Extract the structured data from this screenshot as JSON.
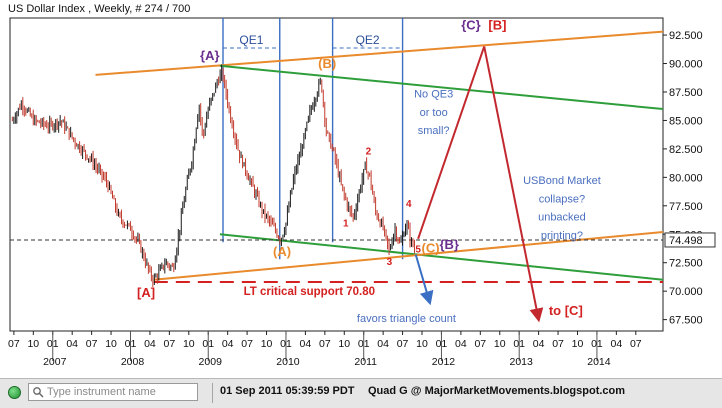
{
  "header": {
    "title": "US Dollar Index , Weekly, # 274 / 700"
  },
  "chart_data": {
    "type": "line",
    "title": "US Dollar Index , Weekly, # 274 / 700",
    "y_axis_side": "right",
    "ylim": [
      66.5,
      94.0
    ],
    "y_ticks": [
      "92.500",
      "90.000",
      "87.500",
      "85.000",
      "82.500",
      "80.000",
      "77.500",
      "75.000",
      "72.500",
      "70.000",
      "67.500"
    ],
    "y_tick_values": [
      92.5,
      90.0,
      87.5,
      85.0,
      82.5,
      80.0,
      77.5,
      75.0,
      72.5,
      70.0,
      67.5
    ],
    "current_price": "74.498",
    "current_price_value": 74.498,
    "x_range": [
      2006.45,
      2014.85
    ],
    "x_month_ticks": [
      {
        "t": 2006.5,
        "label": "07"
      },
      {
        "t": 2006.75,
        "label": "10"
      },
      {
        "t": 2007.0,
        "label": "01"
      },
      {
        "t": 2007.25,
        "label": "04"
      },
      {
        "t": 2007.5,
        "label": "07"
      },
      {
        "t": 2007.75,
        "label": "10"
      },
      {
        "t": 2008.0,
        "label": "01"
      },
      {
        "t": 2008.25,
        "label": "04"
      },
      {
        "t": 2008.5,
        "label": "07"
      },
      {
        "t": 2008.75,
        "label": "10"
      },
      {
        "t": 2009.0,
        "label": "01"
      },
      {
        "t": 2009.25,
        "label": "04"
      },
      {
        "t": 2009.5,
        "label": "07"
      },
      {
        "t": 2009.75,
        "label": "10"
      },
      {
        "t": 2010.0,
        "label": "01"
      },
      {
        "t": 2010.25,
        "label": "04"
      },
      {
        "t": 2010.5,
        "label": "07"
      },
      {
        "t": 2010.75,
        "label": "10"
      },
      {
        "t": 2011.0,
        "label": "01"
      },
      {
        "t": 2011.25,
        "label": "04"
      },
      {
        "t": 2011.5,
        "label": "07"
      },
      {
        "t": 2011.75,
        "label": "10"
      },
      {
        "t": 2012.0,
        "label": "01"
      },
      {
        "t": 2012.25,
        "label": "04"
      },
      {
        "t": 2012.5,
        "label": "07"
      },
      {
        "t": 2012.75,
        "label": "10"
      },
      {
        "t": 2013.0,
        "label": "01"
      },
      {
        "t": 2013.25,
        "label": "04"
      },
      {
        "t": 2013.5,
        "label": "07"
      },
      {
        "t": 2013.75,
        "label": "10"
      },
      {
        "t": 2014.0,
        "label": "01"
      },
      {
        "t": 2014.25,
        "label": "04"
      },
      {
        "t": 2014.5,
        "label": "07"
      }
    ],
    "x_year_ticks": [
      {
        "t": 2007.0,
        "label": "2007"
      },
      {
        "t": 2008.0,
        "label": "2008"
      },
      {
        "t": 2009.0,
        "label": "2009"
      },
      {
        "t": 2010.0,
        "label": "2010"
      },
      {
        "t": 2011.0,
        "label": "2011"
      },
      {
        "t": 2012.0,
        "label": "2012"
      },
      {
        "t": 2013.0,
        "label": "2013"
      },
      {
        "t": 2014.0,
        "label": "2014"
      }
    ],
    "price_path": [
      [
        2006.48,
        85.0
      ],
      [
        2006.6,
        86.5
      ],
      [
        2006.75,
        85.0
      ],
      [
        2006.95,
        84.5
      ],
      [
        2007.1,
        85.0
      ],
      [
        2007.3,
        83.0
      ],
      [
        2007.5,
        81.5
      ],
      [
        2007.7,
        79.5
      ],
      [
        2007.85,
        76.5
      ],
      [
        2008.0,
        75.5
      ],
      [
        2008.12,
        74.0
      ],
      [
        2008.25,
        71.5
      ],
      [
        2008.3,
        71.0
      ],
      [
        2008.45,
        72.5
      ],
      [
        2008.55,
        72.0
      ],
      [
        2008.62,
        75.0
      ],
      [
        2008.7,
        78.5
      ],
      [
        2008.8,
        82.0
      ],
      [
        2008.88,
        86.5
      ],
      [
        2008.93,
        83.5
      ],
      [
        2009.0,
        86.0
      ],
      [
        2009.12,
        88.5
      ],
      [
        2009.18,
        89.2
      ],
      [
        2009.28,
        85.5
      ],
      [
        2009.4,
        82.0
      ],
      [
        2009.55,
        79.5
      ],
      [
        2009.7,
        77.0
      ],
      [
        2009.85,
        75.5
      ],
      [
        2009.93,
        74.5
      ],
      [
        2010.0,
        76.0
      ],
      [
        2010.1,
        80.0
      ],
      [
        2010.2,
        82.5
      ],
      [
        2010.3,
        85.5
      ],
      [
        2010.42,
        88.0
      ],
      [
        2010.45,
        88.5
      ],
      [
        2010.52,
        84.0
      ],
      [
        2010.62,
        82.0
      ],
      [
        2010.72,
        79.0
      ],
      [
        2010.82,
        77.0
      ],
      [
        2010.87,
        76.5
      ],
      [
        2010.95,
        79.0
      ],
      [
        2011.02,
        81.0
      ],
      [
        2011.08,
        80.0
      ],
      [
        2011.15,
        77.0
      ],
      [
        2011.25,
        75.5
      ],
      [
        2011.33,
        73.5
      ],
      [
        2011.4,
        75.5
      ],
      [
        2011.47,
        74.0
      ],
      [
        2011.55,
        76.0
      ],
      [
        2011.6,
        74.5
      ],
      [
        2011.67,
        73.5
      ]
    ],
    "trendlines": [
      {
        "name": "orange-upper",
        "color": "#e98a2c",
        "from": [
          2007.55,
          89.0
        ],
        "to": [
          2014.85,
          92.8
        ]
      },
      {
        "name": "green-upper",
        "color": "#2e9e3a",
        "from": [
          2009.15,
          89.8
        ],
        "to": [
          2014.85,
          86.0
        ]
      },
      {
        "name": "green-lower",
        "color": "#2e9e3a",
        "from": [
          2009.15,
          75.0
        ],
        "to": [
          2014.85,
          71.0
        ]
      },
      {
        "name": "orange-lower",
        "color": "#e98a2c",
        "from": [
          2008.3,
          71.0
        ],
        "to": [
          2014.85,
          75.2
        ]
      }
    ],
    "dashed_price_line": {
      "y": 74.498,
      "color": "#333333"
    },
    "support_line": {
      "y": 70.8,
      "from_t": 2008.3,
      "to_t": 2014.85,
      "color": "#d42020",
      "label": "LT critical support 70.80"
    },
    "qe_bands": [
      {
        "label": "QE1",
        "from_t": 2009.19,
        "to_t": 2009.92
      },
      {
        "label": "QE2",
        "from_t": 2010.6,
        "to_t": 2011.5
      }
    ],
    "projections": [
      {
        "name": "rise-to-C",
        "color": "#c2282e",
        "points": [
          [
            2011.7,
            74.6
          ],
          [
            2012.55,
            91.5
          ]
        ]
      },
      {
        "name": "fall-to-C",
        "color": "#c2282e",
        "points": [
          [
            2012.55,
            91.5
          ],
          [
            2013.25,
            67.5
          ]
        ],
        "arrow": true
      },
      {
        "name": "triangle-arrow",
        "color": "#3a6fc4",
        "points": [
          [
            2011.67,
            73.2
          ],
          [
            2011.85,
            69.0
          ]
        ],
        "arrow": true
      }
    ],
    "wave_labels": [
      {
        "text": "{A}",
        "t": 2009.02,
        "y": 90.3,
        "color": "#6a2f8e"
      },
      {
        "text": "(B)",
        "t": 2010.53,
        "y": 89.6,
        "color": "#e98a2c"
      },
      {
        "text": "{C}",
        "t": 2012.38,
        "y": 93.0,
        "color": "#6a2f8e"
      },
      {
        "text": "[B]",
        "t": 2012.72,
        "y": 93.0,
        "color": "#d42020"
      },
      {
        "text": "(A)",
        "t": 2009.95,
        "y": 73.1,
        "color": "#e98a2c"
      },
      {
        "text": "[A]",
        "t": 2008.2,
        "y": 69.5,
        "color": "#d42020"
      },
      {
        "text": "1",
        "t": 2010.77,
        "y": 75.7,
        "color": "#d42020"
      },
      {
        "text": "2",
        "t": 2011.06,
        "y": 82.0,
        "color": "#d42020"
      },
      {
        "text": "3",
        "t": 2011.33,
        "y": 72.3,
        "color": "#d42020"
      },
      {
        "text": "4",
        "t": 2011.58,
        "y": 77.4,
        "color": "#d42020"
      },
      {
        "text": "5",
        "t": 2011.7,
        "y": 73.4,
        "color": "#d42020"
      },
      {
        "text": "(C)",
        "t": 2011.86,
        "y": 73.4,
        "color": "#e98a2c"
      },
      {
        "text": "{B}",
        "t": 2012.1,
        "y": 73.7,
        "color": "#6a2f8e"
      },
      {
        "text": "to [C]",
        "t": 2013.6,
        "y": 67.9,
        "color": "#d42020"
      }
    ],
    "annotations": [
      {
        "text": "No QE3",
        "t": 2011.9,
        "y": 87.0,
        "color": "#4a6fbf"
      },
      {
        "text": "or too",
        "t": 2011.9,
        "y": 85.4,
        "color": "#4a6fbf"
      },
      {
        "text": "small?",
        "t": 2011.9,
        "y": 83.8,
        "color": "#4a6fbf"
      },
      {
        "text": "USBond Market",
        "t": 2013.55,
        "y": 79.4,
        "color": "#4a6fbf"
      },
      {
        "text": "collapse?",
        "t": 2013.55,
        "y": 77.8,
        "color": "#4a6fbf"
      },
      {
        "text": "unbacked",
        "t": 2013.55,
        "y": 76.2,
        "color": "#4a6fbf"
      },
      {
        "text": "printing?",
        "t": 2013.55,
        "y": 74.6,
        "color": "#4a6fbf"
      },
      {
        "text": "favors triangle count",
        "t": 2011.55,
        "y": 67.3,
        "color": "#4a6fbf"
      }
    ],
    "colors": {
      "candle_up": "#1a1a1a",
      "candle_down": "#c0392b",
      "axis_text": "#111111",
      "price_label_bg": "#ffffff"
    }
  },
  "footer": {
    "search_placeholder": "Type instrument name",
    "timestamp": "01 Sep 2011 05:39:59 PDT",
    "credit": "Quad G @ MajorMarketMovements.blogspot.com"
  }
}
